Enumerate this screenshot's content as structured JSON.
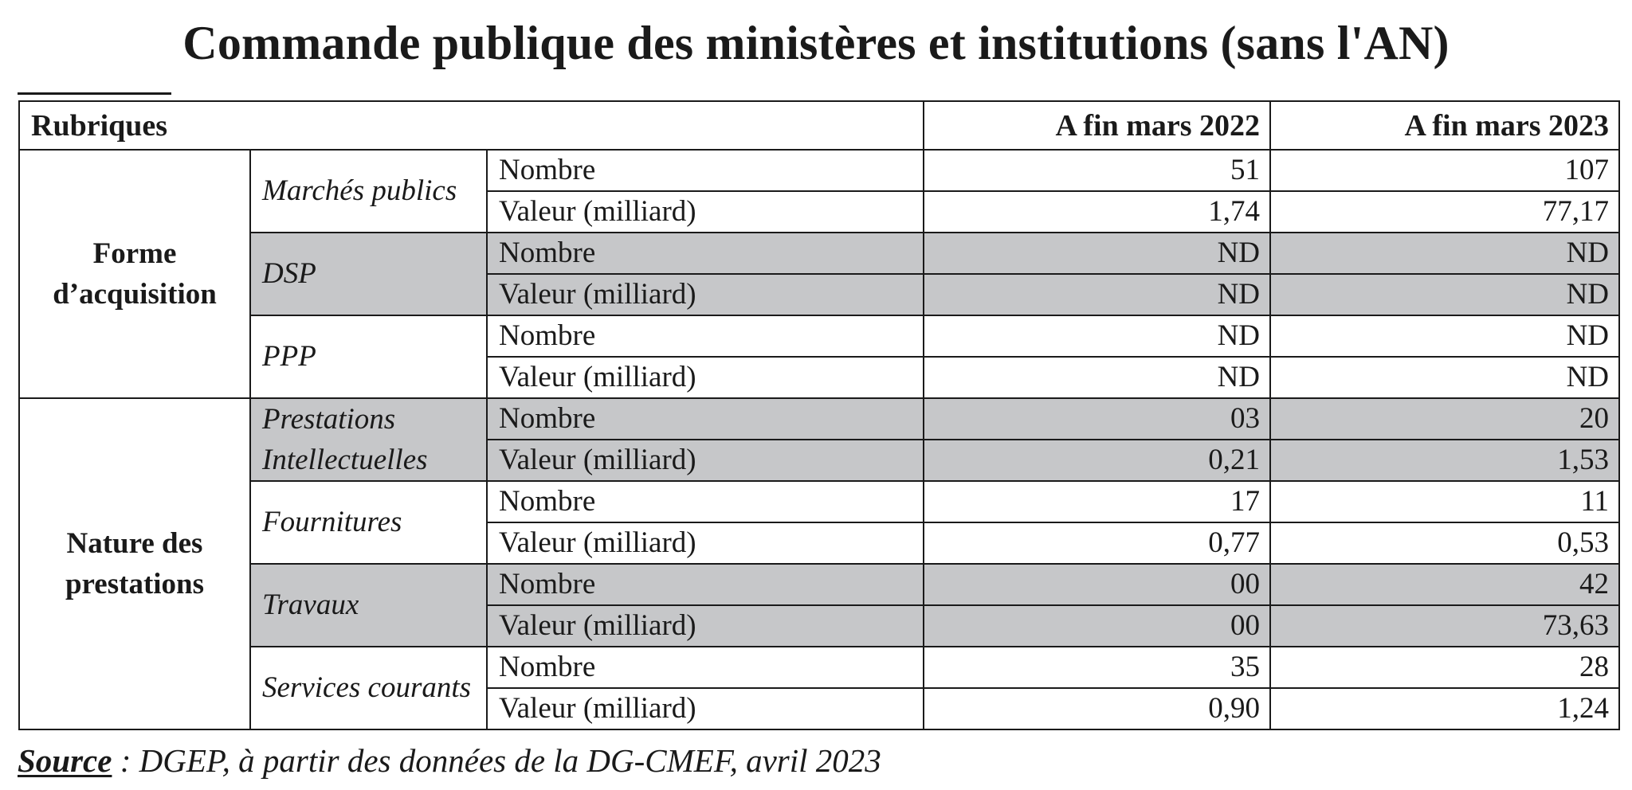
{
  "title": "Commande publique des ministères et institutions (sans l'AN)",
  "table": {
    "header": {
      "rubriques": "Rubriques",
      "col_2022": "A fin mars 2022",
      "col_2023": "A fin mars 2023"
    },
    "groups": [
      {
        "label_lines": [
          "Forme",
          "d’acquisition"
        ],
        "subgroups": [
          {
            "label_lines": [
              "Marchés publics"
            ],
            "shaded": false,
            "rows": [
              {
                "metric": "Nombre",
                "v2022": "51",
                "v2023": "107"
              },
              {
                "metric": "Valeur (milliard)",
                "v2022": "1,74",
                "v2023": "77,17"
              }
            ]
          },
          {
            "label_lines": [
              "DSP"
            ],
            "shaded": true,
            "rows": [
              {
                "metric": "Nombre",
                "v2022": "ND",
                "v2023": "ND"
              },
              {
                "metric": "Valeur (milliard)",
                "v2022": "ND",
                "v2023": "ND"
              }
            ]
          },
          {
            "label_lines": [
              "PPP"
            ],
            "shaded": false,
            "rows": [
              {
                "metric": "Nombre",
                "v2022": "ND",
                "v2023": "ND"
              },
              {
                "metric": "Valeur (milliard)",
                "v2022": "ND",
                "v2023": "ND"
              }
            ]
          }
        ]
      },
      {
        "label_lines": [
          "Nature des",
          "prestations"
        ],
        "subgroups": [
          {
            "label_lines": [
              "Prestations",
              "Intellectuelles"
            ],
            "shaded": true,
            "rows": [
              {
                "metric": "Nombre",
                "v2022": "03",
                "v2023": "20"
              },
              {
                "metric": "Valeur (milliard)",
                "v2022": "0,21",
                "v2023": "1,53"
              }
            ]
          },
          {
            "label_lines": [
              "Fournitures"
            ],
            "shaded": false,
            "rows": [
              {
                "metric": "Nombre",
                "v2022": "17",
                "v2023": "11"
              },
              {
                "metric": "Valeur (milliard)",
                "v2022": "0,77",
                "v2023": "0,53"
              }
            ]
          },
          {
            "label_lines": [
              "Travaux"
            ],
            "shaded": true,
            "rows": [
              {
                "metric": "Nombre",
                "v2022": "00",
                "v2023": "42"
              },
              {
                "metric": "Valeur (milliard)",
                "v2022": "00",
                "v2023": "73,63"
              }
            ]
          },
          {
            "label_lines": [
              "Services courants"
            ],
            "shaded": false,
            "rows": [
              {
                "metric": "Nombre",
                "v2022": "35",
                "v2023": "28"
              },
              {
                "metric": "Valeur (milliard)",
                "v2022": "0,90",
                "v2023": "1,24"
              }
            ]
          }
        ]
      }
    ]
  },
  "source": {
    "label": "Source",
    "text": " : DGEP, à partir des données de la DG-CMEF, avril 2023"
  },
  "colors": {
    "shade": "#c6c7c9",
    "text": "#1a1a1a",
    "border": "#1a1a1a"
  }
}
